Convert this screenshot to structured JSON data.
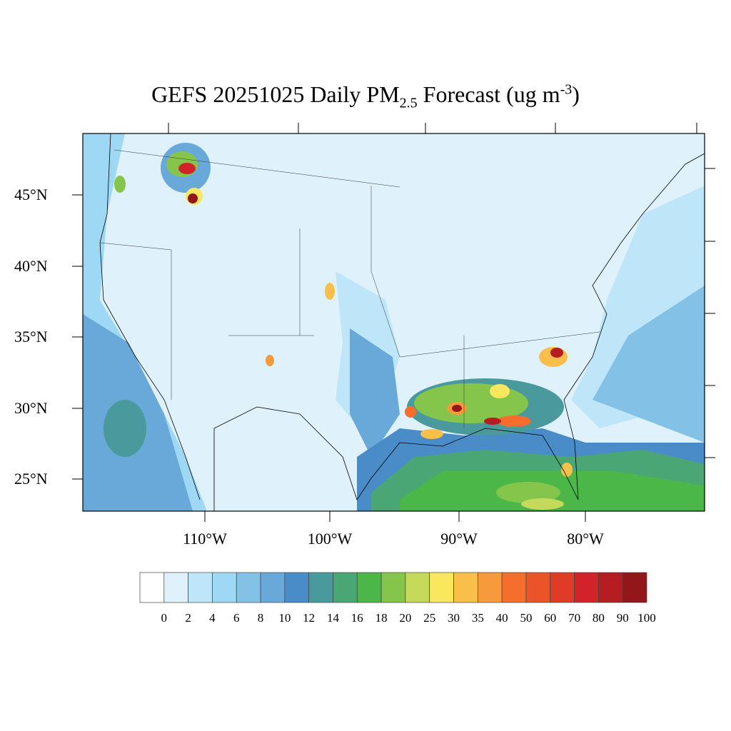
{
  "title": {
    "prefix": "GEFS 20251025 Daily PM",
    "subscript": "2.5",
    "middle": " Forecast (ug m",
    "superscript": "-3",
    "suffix": ")"
  },
  "map": {
    "lat_labels": [
      "45°N",
      "40°N",
      "35°N",
      "30°N",
      "25°N"
    ],
    "lon_labels": [
      "110°W",
      "100°W",
      "90°W",
      "80°W"
    ],
    "background_color": "#dff1fb",
    "region": "Contiguous United States"
  },
  "colorbar": {
    "labels": [
      "0",
      "2",
      "4",
      "6",
      "8",
      "10",
      "12",
      "14",
      "16",
      "18",
      "20",
      "25",
      "30",
      "35",
      "40",
      "50",
      "60",
      "70",
      "80",
      "90",
      "100"
    ],
    "colors": [
      "#ffffff",
      "#dff1fb",
      "#bfe6f8",
      "#9fd8f4",
      "#83c1e7",
      "#68a9da",
      "#4a8cc8",
      "#4a9a9d",
      "#4aa674",
      "#4ab748",
      "#86c54c",
      "#c5d95a",
      "#f9e75e",
      "#f8c04a",
      "#f79a3c",
      "#f56e2b",
      "#ea5428",
      "#df3b26",
      "#d2232a",
      "#b51d22",
      "#93161a"
    ]
  }
}
